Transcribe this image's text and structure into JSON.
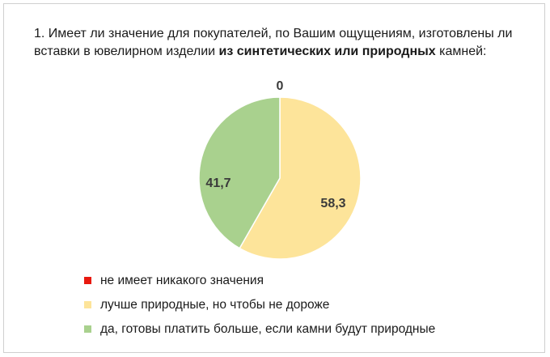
{
  "title": {
    "prefix": "1. Имеет ли значение для покупателей, по Вашим ощущениям, изготовлены ли вставки в ювелирном изделии ",
    "bold": "из синтетических или природных",
    "suffix": " камней:"
  },
  "chart_data": {
    "type": "pie",
    "title": "1. Имеет ли значение для покупателей, по Вашим ощущениям, изготовлены ли вставки в ювелирном изделии из синтетических или природных камней:",
    "categories": [
      "не имеет никакого значения",
      "лучше природные, но чтобы не дороже",
      "да, готовы платить больше, если камни будут природные"
    ],
    "values": [
      0,
      58.3,
      41.7
    ],
    "value_labels": [
      "0",
      "58,3",
      "41,7"
    ],
    "colors": [
      "#e8190f",
      "#fde49a",
      "#a9d18e"
    ],
    "legend_position": "bottom-left",
    "start_angle": "12 o'clock, clockwise"
  }
}
